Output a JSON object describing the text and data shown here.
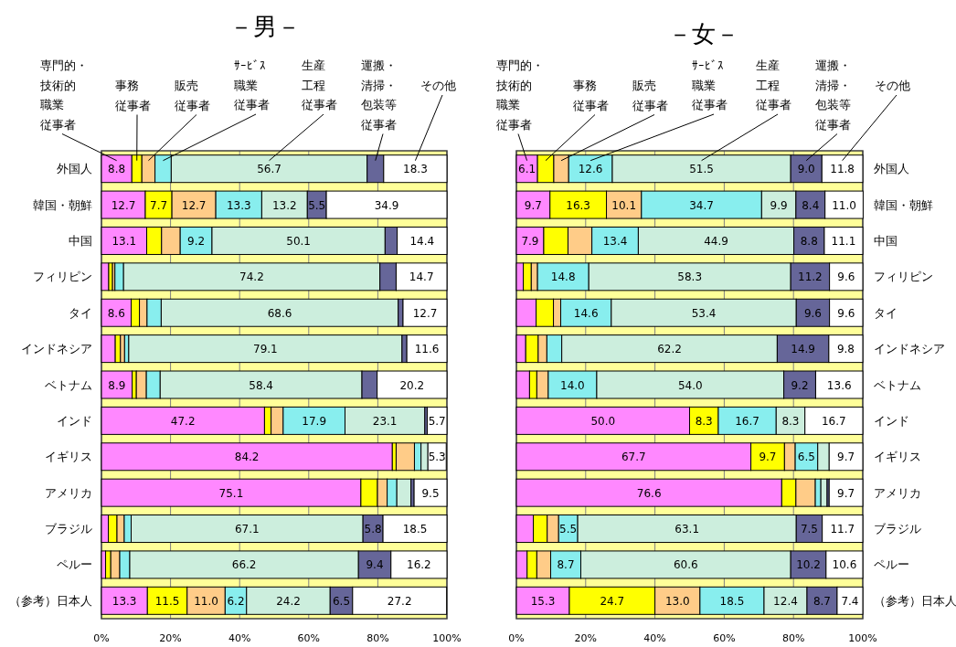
{
  "chart_data": [
    {
      "type": "bar",
      "orientation": "horizontal",
      "stacked": true,
      "title": "－男－",
      "grid": "x",
      "categories": [
        "外国人",
        "韓国・朝鮮",
        "中国",
        "フィリピン",
        "タイ",
        "インドネシア",
        "ベトナム",
        "インド",
        "イギリス",
        "アメリカ",
        "ブラジル",
        "ペルー",
        "（参考）日本人"
      ],
      "xlim": [
        0,
        100
      ],
      "xticks": [
        {
          "value": 0,
          "label": "0%"
        },
        {
          "value": 20,
          "label": "20%"
        },
        {
          "value": 40,
          "label": "40%"
        },
        {
          "value": 60,
          "label": "60%"
        },
        {
          "value": 80,
          "label": "80%"
        },
        {
          "value": 100,
          "label": "100%"
        }
      ],
      "series": [
        {
          "name": "専門的・技術的職業従事者",
          "color": "#ff88ff",
          "values": [
            8.8,
            12.7,
            13.1,
            2.1,
            8.6,
            4.0,
            8.9,
            47.2,
            84.2,
            75.1,
            2.0,
            1.2,
            13.3
          ],
          "value_labels": [
            "8.8",
            "12.7",
            "13.1",
            null,
            "8.6",
            null,
            "8.9",
            "47.2",
            "84.2",
            "75.1",
            null,
            null,
            "13.3"
          ]
        },
        {
          "name": "事務従事者",
          "color": "#ffff00",
          "values": [
            2.9,
            7.7,
            4.3,
            1.1,
            2.4,
            1.5,
            1.2,
            1.9,
            1.1,
            4.8,
            2.5,
            1.5,
            11.5
          ],
          "value_labels": [
            null,
            "7.7",
            null,
            null,
            null,
            null,
            null,
            null,
            null,
            null,
            null,
            null,
            "11.5"
          ]
        },
        {
          "name": "販売従事者",
          "color": "#ffcc88",
          "values": [
            3.8,
            12.7,
            5.4,
            0.7,
            2.2,
            1.2,
            2.9,
            3.5,
            5.3,
            2.8,
            2.1,
            2.6,
            11.0
          ],
          "value_labels": [
            null,
            "12.7",
            null,
            null,
            null,
            null,
            null,
            null,
            null,
            null,
            null,
            null,
            "11.0"
          ]
        },
        {
          "name": "ｻｰﾋﾞｽ職業従事者",
          "color": "#88eeee",
          "values": [
            4.7,
            13.3,
            9.2,
            2.5,
            4.1,
            1.2,
            4.0,
            17.9,
            1.9,
            2.8,
            2.0,
            2.9,
            6.2
          ],
          "value_labels": [
            null,
            "13.3",
            "9.2",
            null,
            null,
            null,
            null,
            "17.9",
            null,
            null,
            null,
            null,
            "6.2"
          ]
        },
        {
          "name": "生産工程従事者",
          "color": "#cceedd",
          "values": [
            56.7,
            13.2,
            50.1,
            74.2,
            68.6,
            79.1,
            58.4,
            23.1,
            2.0,
            4.1,
            67.1,
            66.2,
            24.2
          ],
          "value_labels": [
            "56.7",
            "13.2",
            "50.1",
            "74.2",
            "68.6",
            "79.1",
            "58.4",
            "23.1",
            null,
            null,
            "67.1",
            "66.2",
            "24.2"
          ]
        },
        {
          "name": "運搬・清掃・包装等従事者",
          "color": "#666699",
          "values": [
            4.8,
            5.5,
            3.5,
            4.7,
            1.4,
            1.4,
            4.4,
            0.7,
            null,
            0.9,
            5.8,
            9.4,
            6.5
          ],
          "value_labels": [
            null,
            "5.5",
            null,
            null,
            null,
            null,
            null,
            null,
            null,
            null,
            "5.8",
            "9.4",
            "6.5"
          ]
        },
        {
          "name": "その他",
          "color": "#ffffff",
          "values": [
            18.3,
            34.9,
            14.4,
            14.7,
            12.7,
            11.6,
            20.2,
            5.7,
            5.3,
            9.5,
            18.5,
            16.2,
            27.2
          ],
          "value_labels": [
            "18.3",
            "34.9",
            "14.4",
            "14.7",
            "12.7",
            "11.6",
            "20.2",
            "5.7",
            "5.3",
            "9.5",
            "18.5",
            "16.2",
            "27.2"
          ]
        }
      ]
    },
    {
      "type": "bar",
      "orientation": "horizontal",
      "stacked": true,
      "title": "－女－",
      "grid": "x",
      "categories": [
        "外国人",
        "韓国・朝鮮",
        "中国",
        "フィリピン",
        "タイ",
        "インドネシア",
        "ベトナム",
        "インド",
        "イギリス",
        "アメリカ",
        "ブラジル",
        "ペルー",
        "（参考）日本人"
      ],
      "xlim": [
        0,
        100
      ],
      "xticks": [
        {
          "value": 0,
          "label": "0%"
        },
        {
          "value": 20,
          "label": "20%"
        },
        {
          "value": 40,
          "label": "40%"
        },
        {
          "value": 60,
          "label": "60%"
        },
        {
          "value": 80,
          "label": "80%"
        },
        {
          "value": 100,
          "label": "100%"
        }
      ],
      "series": [
        {
          "name": "専門的・技術的職業従事者",
          "color": "#ff88ff",
          "values": [
            6.1,
            9.7,
            7.9,
            2.0,
            5.7,
            2.7,
            3.8,
            50.0,
            67.7,
            76.6,
            4.9,
            3.1,
            15.3
          ],
          "value_labels": [
            "6.1",
            "9.7",
            "7.9",
            null,
            null,
            null,
            null,
            "50.0",
            "67.7",
            "76.6",
            null,
            null,
            "15.3"
          ]
        },
        {
          "name": "事務従事者",
          "color": "#ffff00",
          "values": [
            4.7,
            16.3,
            7.0,
            2.3,
            5.0,
            3.6,
            2.1,
            8.3,
            9.7,
            4.1,
            4.0,
            2.8,
            24.7
          ],
          "value_labels": [
            null,
            "16.3",
            null,
            null,
            null,
            null,
            null,
            "8.3",
            "9.7",
            null,
            null,
            null,
            "24.7"
          ]
        },
        {
          "name": "販売従事者",
          "color": "#ffcc88",
          "values": [
            4.3,
            10.1,
            6.9,
            1.8,
            2.1,
            2.5,
            3.3,
            0,
            3.1,
            5.6,
            3.3,
            4.0,
            13.0
          ],
          "value_labels": [
            null,
            "10.1",
            null,
            null,
            null,
            null,
            null,
            null,
            null,
            null,
            null,
            null,
            "13.0"
          ]
        },
        {
          "name": "ｻｰﾋﾞｽ職業従事者",
          "color": "#88eeee",
          "values": [
            12.6,
            34.7,
            13.4,
            14.8,
            14.6,
            4.3,
            14.0,
            16.7,
            6.5,
            1.6,
            5.5,
            8.7,
            18.5
          ],
          "value_labels": [
            "12.6",
            "34.7",
            "13.4",
            "14.8",
            "14.6",
            null,
            "14.0",
            "16.7",
            "6.5",
            null,
            "5.5",
            "8.7",
            "18.5"
          ]
        },
        {
          "name": "生産工程従事者",
          "color": "#cceedd",
          "values": [
            51.5,
            9.9,
            44.9,
            58.3,
            53.4,
            62.2,
            54.0,
            8.3,
            3.3,
            1.8,
            63.1,
            60.6,
            12.4
          ],
          "value_labels": [
            "51.5",
            "9.9",
            "44.9",
            "58.3",
            "53.4",
            "62.2",
            "54.0",
            "8.3",
            null,
            null,
            "63.1",
            "60.6",
            "12.4"
          ]
        },
        {
          "name": "運搬・清掃・包装等従事者",
          "color": "#666699",
          "values": [
            9.0,
            8.4,
            8.8,
            11.2,
            9.6,
            14.9,
            9.2,
            0,
            0,
            0.6,
            7.5,
            10.2,
            8.7
          ],
          "value_labels": [
            "9.0",
            "8.4",
            "8.8",
            "11.2",
            "9.6",
            "14.9",
            "9.2",
            null,
            null,
            null,
            "7.5",
            "10.2",
            "8.7"
          ]
        },
        {
          "name": "その他",
          "color": "#ffffff",
          "values": [
            11.8,
            11.0,
            11.1,
            9.6,
            9.6,
            9.8,
            13.6,
            16.7,
            9.7,
            9.7,
            11.7,
            10.6,
            7.4
          ],
          "value_labels": [
            "11.8",
            "11.0",
            "11.1",
            "9.6",
            "9.6",
            "9.8",
            "13.6",
            "16.7",
            "9.7",
            "9.7",
            "11.7",
            "10.6",
            "7.4"
          ]
        }
      ]
    }
  ]
}
